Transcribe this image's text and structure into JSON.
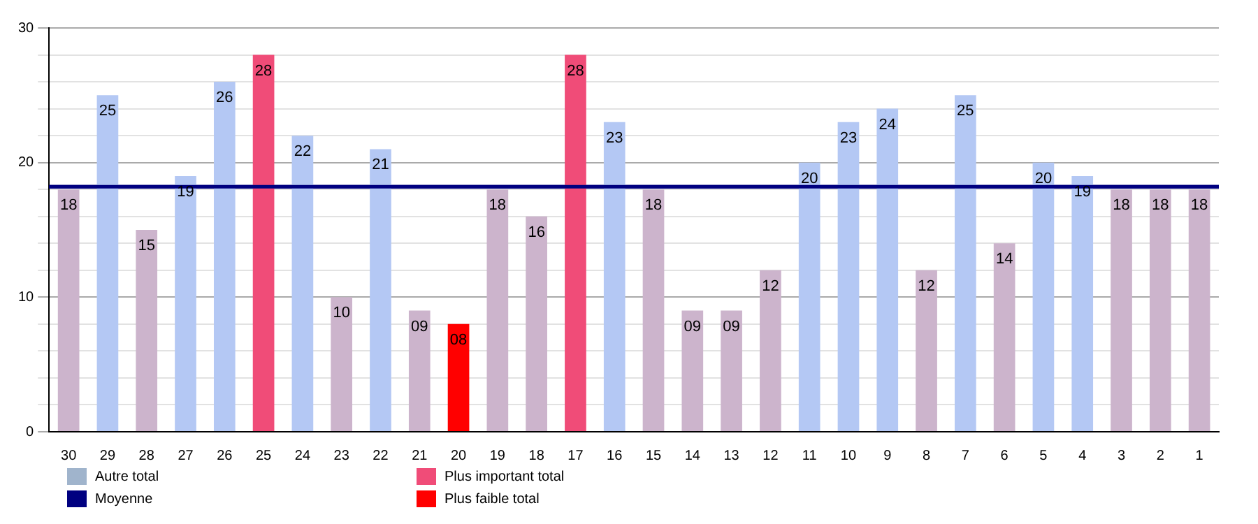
{
  "chart_data": {
    "type": "bar",
    "stacked": true,
    "categories": [
      "30",
      "29",
      "28",
      "27",
      "26",
      "25",
      "24",
      "23",
      "22",
      "21",
      "20",
      "19",
      "18",
      "17",
      "16",
      "15",
      "14",
      "13",
      "12",
      "11",
      "10",
      "9",
      "8",
      "7",
      "6",
      "5",
      "4",
      "3",
      "2",
      "1"
    ],
    "series": [
      {
        "name": "Autre total",
        "color": "#a0b4cc",
        "values": [
          18,
          25,
          15,
          19,
          26,
          null,
          22,
          10,
          21,
          9,
          null,
          18,
          16,
          null,
          23,
          18,
          9,
          9,
          12,
          20,
          23,
          24,
          12,
          25,
          14,
          20,
          19,
          18,
          18,
          18
        ],
        "colors": [
          "#ccb4cc",
          "#b4c8f4",
          "#ccb4cc",
          "#b4c8f4",
          "#b4c8f4",
          "#b4c8f4",
          "#b4c8f4",
          "#ccb4cc",
          "#b4c8f4",
          "#ccb4cc",
          "#ccb4cc",
          "#ccb4cc",
          "#ccb4cc",
          "#b4c8f4",
          "#b4c8f4",
          "#ccb4cc",
          "#ccb4cc",
          "#ccb4cc",
          "#ccb4cc",
          "#b4c8f4",
          "#b4c8f4",
          "#b4c8f4",
          "#ccb4cc",
          "#b4c8f4",
          "#ccb4cc",
          "#b4c8f4",
          "#b4c8f4",
          "#ccb4cc",
          "#ccb4cc",
          "#ccb4cc"
        ]
      },
      {
        "name": "Plus important total",
        "color": "#f04c78",
        "values": [
          null,
          null,
          null,
          null,
          null,
          28,
          null,
          null,
          null,
          null,
          null,
          null,
          null,
          28,
          null,
          null,
          null,
          null,
          null,
          null,
          null,
          null,
          null,
          null,
          null,
          null,
          null,
          null,
          null,
          null
        ]
      },
      {
        "name": "Plus faible total",
        "color": "#ff0000",
        "values": [
          null,
          null,
          null,
          null,
          null,
          null,
          null,
          null,
          null,
          null,
          8,
          null,
          null,
          null,
          null,
          null,
          null,
          null,
          null,
          null,
          null,
          null,
          null,
          null,
          null,
          null,
          null,
          null,
          null,
          null
        ]
      }
    ],
    "value_labels": [
      "18",
      "25",
      "15",
      "19",
      "26",
      "28",
      "22",
      "10",
      "21",
      "09",
      "08",
      "18",
      "16",
      "28",
      "23",
      "18",
      "09",
      "09",
      "12",
      "20",
      "23",
      "24",
      "12",
      "25",
      "14",
      "20",
      "19",
      "18",
      "18",
      "18"
    ],
    "ref_lines": [
      {
        "axis": "y",
        "value": 18.2,
        "label": "Moyenne",
        "color": "#000080"
      }
    ],
    "ylim": [
      0,
      30
    ],
    "yticks": [
      0,
      {
        "value": 2,
        "label": null
      },
      {
        "value": 4,
        "label": null
      },
      {
        "value": 6,
        "label": null
      },
      {
        "value": 8,
        "label": null
      },
      10,
      {
        "value": 12,
        "label": null
      },
      {
        "value": 14,
        "label": null
      },
      {
        "value": 16,
        "label": null
      },
      {
        "value": 18,
        "label": null
      },
      20,
      {
        "value": 22,
        "label": null
      },
      {
        "value": 24,
        "label": null
      },
      {
        "value": 26,
        "label": null
      },
      {
        "value": 28,
        "label": null
      },
      30
    ],
    "grid": "y",
    "legend": "bottom left"
  }
}
